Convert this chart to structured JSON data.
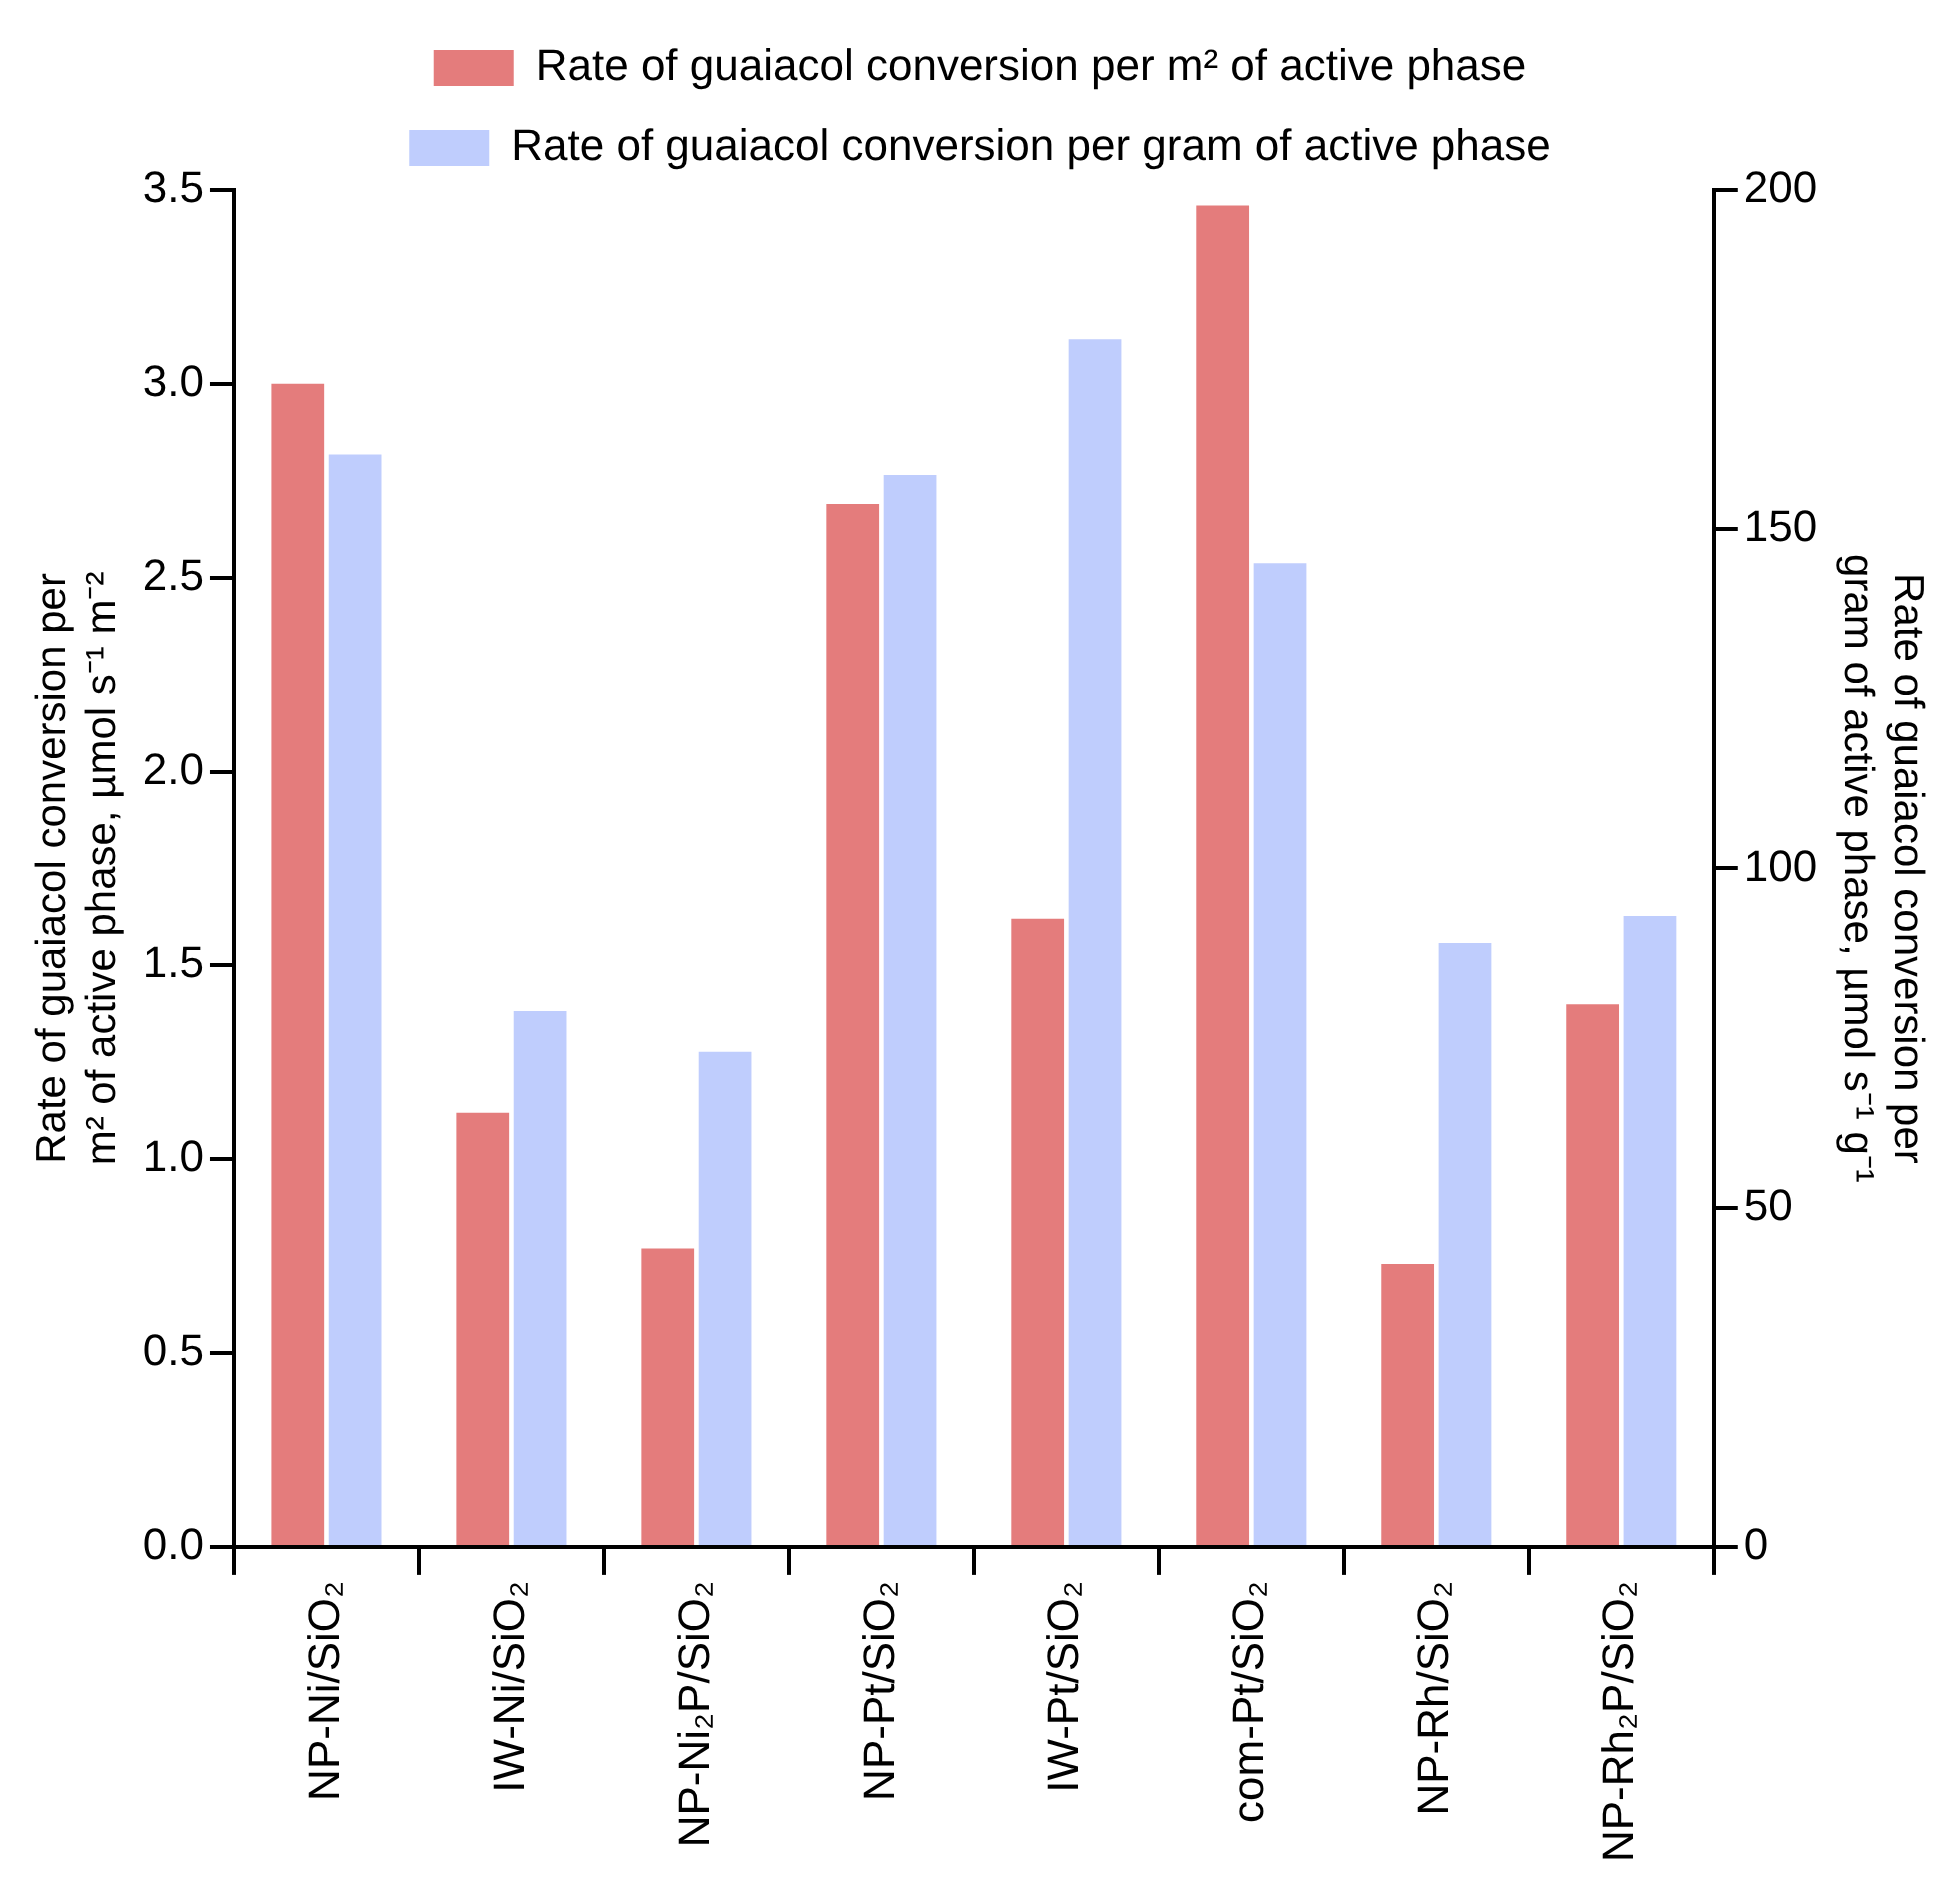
{
  "chart_data": {
    "type": "bar",
    "categories": [
      "NP-Ni/SiO₂",
      "IW-Ni/SiO₂",
      "NP-Ni₂P/SiO₂",
      "NP-Pt/SiO₂",
      "IW-Pt/SiO₂",
      "com-Pt/SiO₂",
      "NP-Rh/SiO₂",
      "NP-Rh₂P/SiO₂"
    ],
    "series": [
      {
        "name": "Rate of guaiacol conversion per m² of active phase",
        "color": "#e47c7c",
        "values": [
          3.0,
          1.12,
          0.77,
          2.69,
          1.62,
          3.46,
          0.73,
          1.4
        ]
      },
      {
        "name": "Rate of guaiacol conversion per gram of active phase",
        "color": "#bfcdfd",
        "axis": "y2",
        "values": [
          161,
          79,
          73,
          158,
          178,
          145,
          89,
          93
        ]
      }
    ],
    "ylabel": "Rate of guaiacol conversion per m² of active phase, µmol s⁻¹ m⁻²",
    "y2label": "Rate of guaiacol conversion per gram of active phase, µmol s⁻¹ g⁻¹",
    "ylim": [
      0,
      3.5
    ],
    "yticks": [
      {
        "value": 0,
        "label": "0.0"
      },
      0.5,
      {
        "value": 1,
        "label": "1.0"
      },
      1.5,
      {
        "value": 2,
        "label": "2.0"
      },
      2.5,
      {
        "value": 3,
        "label": "3.0"
      },
      3.5
    ],
    "y2lim": [
      0,
      200
    ],
    "y2ticks": [
      0,
      50,
      100,
      150,
      200
    ],
    "grid": false,
    "legend": "top"
  }
}
